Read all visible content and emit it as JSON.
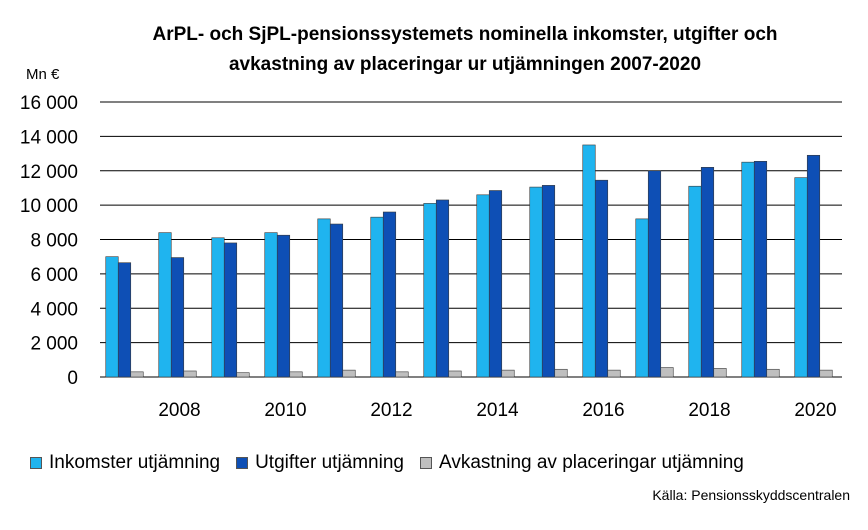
{
  "chart_data": {
    "type": "bar",
    "title_line1": "ArPL- och SjPL-pensionssystemets nominella inkomster,  utgifter och",
    "title_line2": "avkastning av placeringar ur utjämningen 2007-2020",
    "ylabel": "Mn €",
    "ylim": [
      0,
      16000
    ],
    "yticks": [
      0,
      2000,
      4000,
      6000,
      8000,
      10000,
      12000,
      14000,
      16000
    ],
    "ytick_labels": [
      "0",
      "2 000",
      "4 000",
      "6 000",
      "8 000",
      "10 000",
      "12 000",
      "14 000",
      "16 000"
    ],
    "categories": [
      "2007",
      "2008",
      "2009",
      "2010",
      "2011",
      "2012",
      "2013",
      "2014",
      "2015",
      "2016",
      "2017",
      "2018",
      "2019",
      "2020"
    ],
    "xtick_labels_shown": [
      "2008",
      "2010",
      "2012",
      "2014",
      "2016",
      "2018",
      "2020"
    ],
    "grid": true,
    "legend_position": "bottom",
    "series": [
      {
        "name": "Inkomster utjämning",
        "color": "#1fb4ef",
        "values": [
          7000,
          8400,
          8100,
          8400,
          9200,
          9300,
          10100,
          10600,
          11050,
          13500,
          9200,
          11100,
          12500,
          11600
        ]
      },
      {
        "name": "Utgifter utjämning",
        "color": "#0e4fb5",
        "values": [
          6650,
          6950,
          7800,
          8250,
          8900,
          9600,
          10300,
          10850,
          11150,
          11450,
          12000,
          12200,
          12550,
          12900
        ]
      },
      {
        "name": "Avkastning av placeringar utjämning",
        "color": "#bfbfbf",
        "values": [
          300,
          350,
          250,
          300,
          400,
          300,
          350,
          400,
          450,
          400,
          550,
          500,
          450,
          400
        ]
      }
    ],
    "source": "Källa: Pensionsskyddscentralen"
  }
}
